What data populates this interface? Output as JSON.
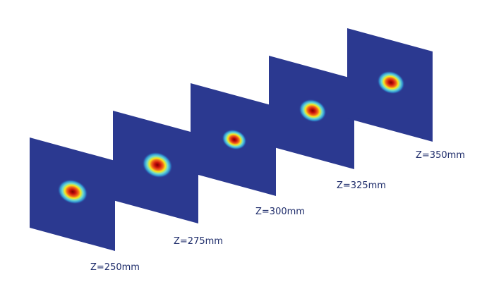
{
  "labels": [
    "Z=250mm",
    "Z=275mm",
    "Z=300mm",
    "Z=325mm",
    "Z=350mm"
  ]
}
